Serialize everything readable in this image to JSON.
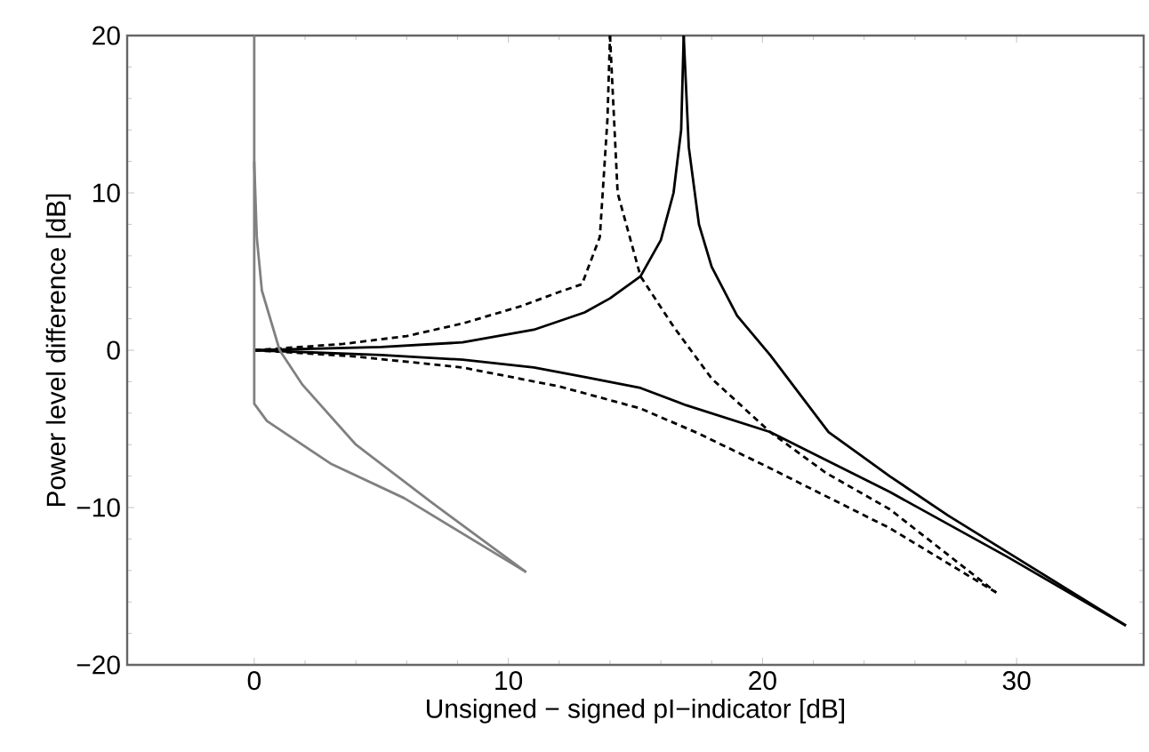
{
  "chart_data": {
    "type": "line",
    "xlabel": "Unsigned − signed pI−indicator [dB]",
    "ylabel": "Power level difference [dB]",
    "xlim": [
      -5,
      35
    ],
    "ylim": [
      -20,
      20
    ],
    "xticks": [
      0,
      10,
      20,
      30
    ],
    "yticks": [
      {
        "value": -20,
        "label": "−20"
      },
      {
        "value": -10,
        "label": "−10"
      },
      0,
      10,
      20
    ],
    "series": [
      {
        "color": "#000000",
        "line_style": "solid",
        "x": [
          0,
          5,
          8.2,
          11,
          13,
          14,
          15.2,
          16,
          16.5,
          16.8,
          16.9
        ],
        "values": [
          0,
          0.2,
          0.5,
          1.3,
          2.4,
          3.3,
          4.7,
          7,
          10,
          14,
          20
        ]
      },
      {
        "color": "#000000",
        "line_style": "solid",
        "x": [
          16.9,
          17.1,
          17.5,
          18,
          19,
          20.3,
          22.6,
          25,
          27.3,
          30,
          34.3
        ],
        "values": [
          20,
          12.9,
          8,
          5.3,
          2.2,
          -0.3,
          -5.2,
          -8,
          -10.5,
          -13.2,
          -17.5
        ]
      },
      {
        "color": "#000000",
        "line_style": "solid",
        "x": [
          0,
          5,
          8.2,
          11,
          13,
          15.2,
          17,
          20.3,
          25,
          29.6,
          34.3
        ],
        "values": [
          0,
          -0.3,
          -0.6,
          -1.1,
          -1.7,
          -2.4,
          -3.5,
          -5.2,
          -9,
          -13.1,
          -17.5
        ]
      },
      {
        "color": "#000000",
        "line_style": "dashed",
        "x": [
          0,
          3.5,
          6,
          8.2,
          10.5,
          12,
          12.9,
          13.6,
          13.9,
          14
        ],
        "values": [
          0,
          0.4,
          0.9,
          1.7,
          2.8,
          3.7,
          4.2,
          7.2,
          14.7,
          20
        ]
      },
      {
        "color": "#000000",
        "line_style": "dashed",
        "x": [
          14,
          14.3,
          15.2,
          16.5,
          18,
          20.3,
          22.5,
          25,
          29.2
        ],
        "values": [
          20,
          10,
          4.7,
          1.5,
          -1.8,
          -5.2,
          -7.8,
          -10.1,
          -15.4
        ]
      },
      {
        "color": "#000000",
        "line_style": "dashed",
        "x": [
          0,
          4,
          8.2,
          12,
          15.2,
          17.5,
          20.3,
          25,
          29.2
        ],
        "values": [
          0,
          -0.4,
          -1.1,
          -2.3,
          -3.7,
          -5.3,
          -7.5,
          -11.3,
          -15.4
        ]
      },
      {
        "color": "#808080",
        "line_style": "solid",
        "x": [
          0,
          0,
          0.5,
          3,
          5.9,
          10.7
        ],
        "values": [
          20,
          -3.4,
          -4.5,
          -7.2,
          -9.4,
          -14.1
        ]
      },
      {
        "color": "#808080",
        "line_style": "solid",
        "x": [
          0,
          0.1,
          0.3,
          1,
          1.9,
          4,
          7,
          10.7
        ],
        "values": [
          12,
          7.2,
          3.8,
          0,
          -2.2,
          -6,
          -9.7,
          -14.1
        ]
      }
    ]
  }
}
